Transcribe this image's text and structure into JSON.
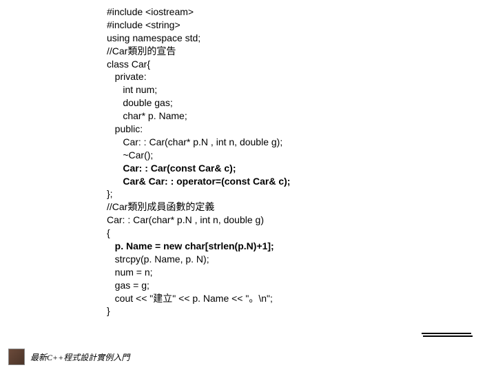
{
  "code": {
    "lines": [
      {
        "text": "#include <iostream>",
        "indent": 0,
        "bold": false
      },
      {
        "text": "#include <string>",
        "indent": 0,
        "bold": false
      },
      {
        "text": "using namespace std;",
        "indent": 0,
        "bold": false
      },
      {
        "text": "//Car類別的宣告",
        "indent": 0,
        "bold": false
      },
      {
        "text": "class Car{",
        "indent": 0,
        "bold": false
      },
      {
        "text": "private:",
        "indent": 1,
        "bold": false
      },
      {
        "text": "int num;",
        "indent": 2,
        "bold": false
      },
      {
        "text": "double gas;",
        "indent": 2,
        "bold": false
      },
      {
        "text": "char* p. Name;",
        "indent": 2,
        "bold": false
      },
      {
        "text": "public:",
        "indent": 1,
        "bold": false
      },
      {
        "text": "Car: : Car(char* p.N , int n, double g);",
        "indent": 2,
        "bold": false
      },
      {
        "text": "~Car();",
        "indent": 2,
        "bold": false
      },
      {
        "text": "Car: : Car(const Car& c);",
        "indent": 2,
        "bold": true
      },
      {
        "text": "Car& Car: : operator=(const Car& c);",
        "indent": 2,
        "bold": true
      },
      {
        "text": "};",
        "indent": 0,
        "bold": false
      },
      {
        "text": "//Car類別成員函數的定義",
        "indent": 0,
        "bold": false
      },
      {
        "text": "Car: : Car(char* p.N , int n, double g)",
        "indent": 0,
        "bold": false
      },
      {
        "text": "{",
        "indent": 0,
        "bold": false
      },
      {
        "text": "p. Name = new char[strlen(p.N)+1];",
        "indent": 1,
        "bold": true
      },
      {
        "text": "strcpy(p. Name, p. N);",
        "indent": 1,
        "bold": false
      },
      {
        "text": "num = n;",
        "indent": 1,
        "bold": false
      },
      {
        "text": "gas = g;",
        "indent": 1,
        "bold": false
      },
      {
        "text": "cout << \"建立\" << p. Name << \"。\\n\";",
        "indent": 1,
        "bold": false
      },
      {
        "text": "}",
        "indent": 0,
        "bold": false
      }
    ],
    "indent_unit": "   "
  },
  "footer": {
    "text": "最新C++程式設計實例入門"
  },
  "colors": {
    "background": "#ffffff",
    "text": "#000000",
    "footer_icon_start": "#6b4a3a",
    "footer_icon_end": "#4a3428"
  },
  "typography": {
    "code_fontsize": 14,
    "code_lineheight": 1.35,
    "footer_fontsize": 12
  }
}
